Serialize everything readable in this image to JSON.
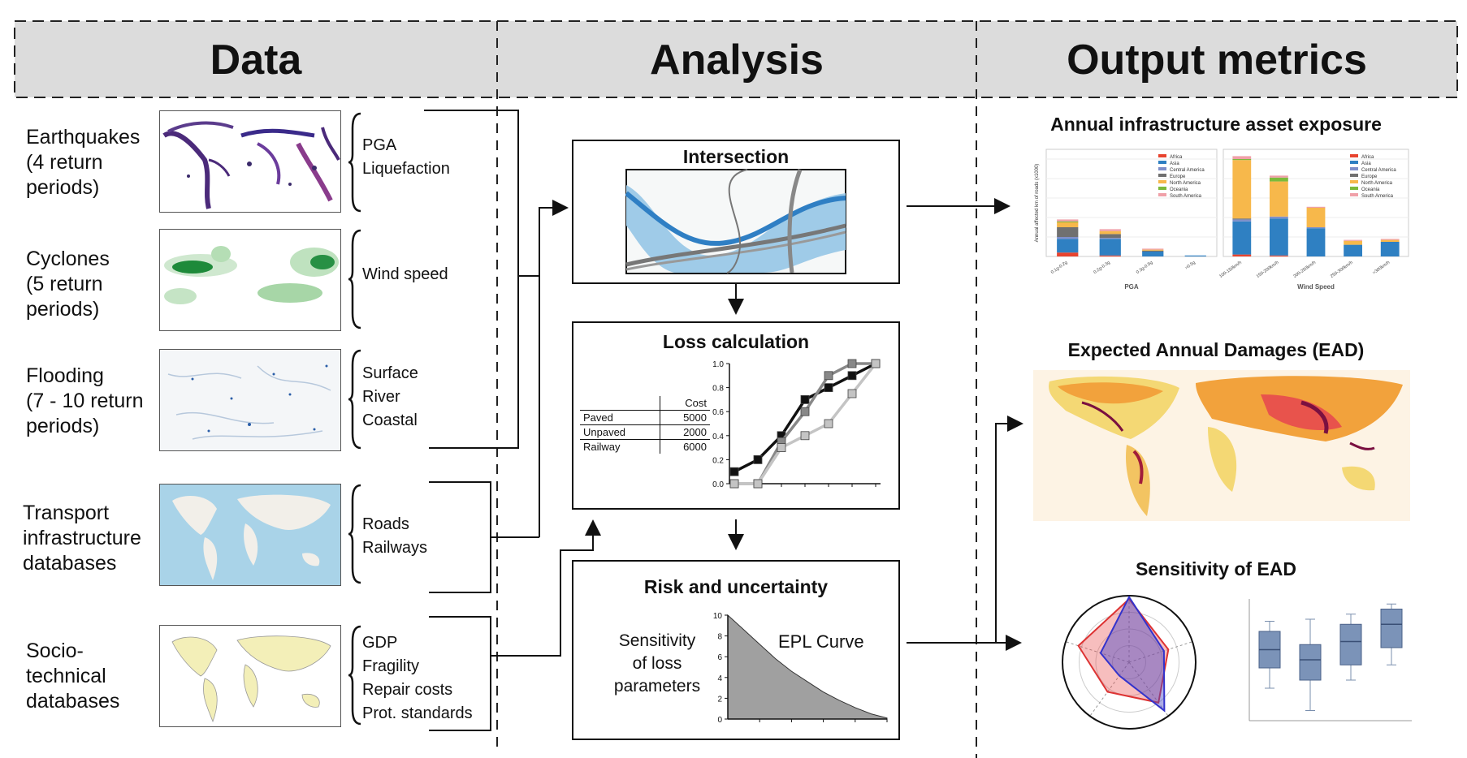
{
  "headers": {
    "data": "Data",
    "analysis": "Analysis",
    "output": "Output metrics"
  },
  "sources": [
    {
      "label": "Earthquakes\n(4 return\nperiods)",
      "params": [
        "PGA",
        "Liquefaction"
      ]
    },
    {
      "label": "Cyclones\n(5 return\nperiods)",
      "params": [
        "Wind speed"
      ]
    },
    {
      "label": "Flooding\n(7 - 10 return\nperiods)",
      "params": [
        "Surface",
        "River",
        "Coastal"
      ]
    },
    {
      "label": "Transport\ninfrastructure\ndatabases",
      "params": [
        "Roads",
        "Railways"
      ]
    },
    {
      "label": "Socio-\ntechnical\ndatabases",
      "params": [
        "GDP",
        "Fragility",
        "Repair costs",
        "Prot. standards"
      ]
    }
  ],
  "analysis": {
    "intersection_title": "Intersection",
    "loss_title": "Loss  calculation",
    "risk_title": "Risk and uncertainty",
    "sensitivity_label": "Sensitivity\nof loss\nparameters",
    "epl_label": "EPL Curve",
    "cost_table": {
      "header": "Cost",
      "rows": [
        {
          "name": "Paved",
          "cost": "5000"
        },
        {
          "name": "Unpaved",
          "cost": "2000"
        },
        {
          "name": "Railway",
          "cost": "6000"
        }
      ]
    },
    "loss_ticks": [
      "0.0",
      "0.2",
      "0.4",
      "0.6",
      "0.8",
      "1.0"
    ],
    "loss_curves": [
      {
        "color": "#111111",
        "values": [
          0.1,
          0.2,
          0.4,
          0.7,
          0.8,
          0.9,
          1.0
        ]
      },
      {
        "color": "#888888",
        "values": [
          0.0,
          0.0,
          0.35,
          0.6,
          0.9,
          1.0,
          1.0
        ]
      },
      {
        "color": "#c4c4c4",
        "values": [
          0.0,
          0.0,
          0.3,
          0.4,
          0.5,
          0.75,
          1.0
        ]
      }
    ],
    "epl_ticks": [
      "0",
      "2",
      "4",
      "6",
      "8",
      "10"
    ],
    "epl_values": [
      10,
      8.6,
      7.2,
      5.8,
      4.6,
      3.6,
      2.6,
      1.8,
      1.1,
      0.5,
      0.1
    ]
  },
  "outputs": {
    "exposure_title": "Annual infrastructure asset exposure",
    "ead_title": "Expected Annual Damages (EAD)",
    "sensitivity_title": "Sensitivity of EAD",
    "pga_label": "PGA",
    "wind_label": "Wind Speed",
    "exposure_ylabel": "Annual affected km of roads (x1000)",
    "pga_categories": [
      "0.1g-0.2g",
      "0.2g-0.3g",
      "0.3g-0.5g",
      ">0.5g"
    ],
    "wind_categories": [
      "100-150km/h",
      "150-200km/h",
      "200-250km/h",
      "250-300km/h",
      ">300km/h"
    ],
    "regions": [
      {
        "name": "Africa",
        "color": "#e8432e"
      },
      {
        "name": "Asia",
        "color": "#2f80c2"
      },
      {
        "name": "Central America",
        "color": "#7f8fc9"
      },
      {
        "name": "Europe",
        "color": "#707070"
      },
      {
        "name": "North America",
        "color": "#f7b84b"
      },
      {
        "name": "Oceania",
        "color": "#7cba3b"
      },
      {
        "name": "South America",
        "color": "#f0a0a8"
      }
    ],
    "pga_stacks": [
      [
        4,
        14,
        2,
        10,
        5,
        1,
        2
      ],
      [
        1,
        17,
        1,
        4,
        3,
        0,
        2
      ],
      [
        0,
        5,
        0,
        1,
        1,
        0,
        1
      ],
      [
        0,
        1,
        0,
        0,
        0,
        0,
        0
      ]
    ],
    "wind_stacks": [
      [
        2,
        34,
        2,
        1,
        60,
        1,
        3
      ],
      [
        1,
        38,
        2,
        0,
        36,
        4,
        2
      ],
      [
        0,
        29,
        1,
        0,
        20,
        0,
        1
      ],
      [
        0,
        12,
        0,
        0,
        4,
        0,
        1
      ],
      [
        0,
        15,
        0,
        0,
        2,
        0,
        1
      ]
    ],
    "box_stats": [
      {
        "min": 0.32,
        "q1": 0.52,
        "median": 0.7,
        "q3": 0.88,
        "max": 0.98
      },
      {
        "min": 0.1,
        "q1": 0.4,
        "median": 0.6,
        "q3": 0.75,
        "max": 1.0
      },
      {
        "min": 0.4,
        "q1": 0.55,
        "median": 0.78,
        "q3": 0.95,
        "max": 1.05
      },
      {
        "min": 0.55,
        "q1": 0.72,
        "median": 0.95,
        "q3": 1.1,
        "max": 1.15
      }
    ]
  }
}
